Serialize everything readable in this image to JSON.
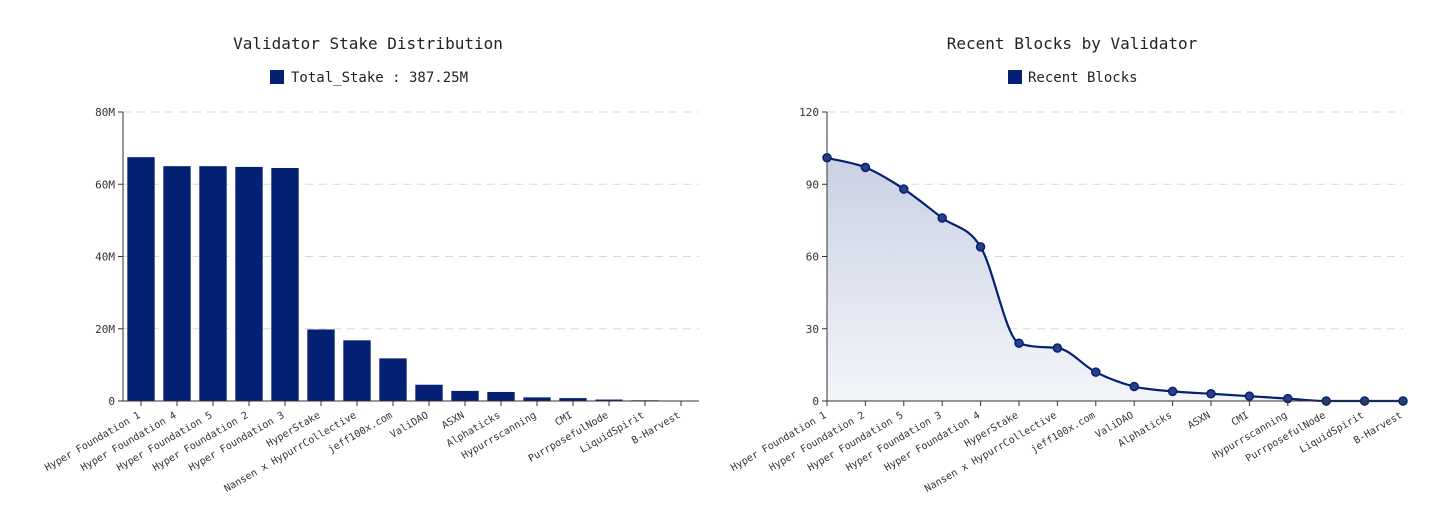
{
  "colors": {
    "series": "#032072",
    "area_top": "#c9d1e3",
    "area_bottom": "#f3f5fa"
  },
  "chart_data": [
    {
      "type": "bar",
      "title": "Validator Stake Distribution",
      "legend": "Total_Stake : 387.25M",
      "categories": [
        "Hyper Foundation 1",
        "Hyper Foundation 4",
        "Hyper Foundation 5",
        "Hyper Foundation 2",
        "Hyper Foundation 3",
        "HyperStake",
        "Nansen x HypurrCollective",
        "jeff100x.com",
        "ValiDAO",
        "ASXN",
        "Alphaticks",
        "Hypurrscanning",
        "CMI",
        "PurrposefulNode",
        "LiquidSpirit",
        "B-Harvest"
      ],
      "values": [
        67.5,
        65.0,
        65.0,
        64.8,
        64.5,
        19.8,
        16.8,
        11.8,
        4.5,
        2.8,
        2.5,
        1.0,
        0.8,
        0.4,
        0.2,
        0.1
      ],
      "yticks": [
        "0",
        "20M",
        "40M",
        "60M",
        "80M"
      ],
      "ylim": [
        0,
        80
      ],
      "xlabel": "",
      "ylabel": "",
      "grid": true
    },
    {
      "type": "area",
      "title": "Recent Blocks by Validator",
      "legend": "Recent Blocks",
      "categories": [
        "Hyper Foundation 1",
        "Hyper Foundation 2",
        "Hyper Foundation 5",
        "Hyper Foundation 3",
        "Hyper Foundation 4",
        "HyperStake",
        "Nansen x HypurrCollective",
        "jeff100x.com",
        "ValiDAO",
        "Alphaticks",
        "ASXN",
        "CMI",
        "Hypurrscanning",
        "PurrposefulNode",
        "LiquidSpirit",
        "B-Harvest"
      ],
      "values": [
        101,
        97,
        88,
        76,
        64,
        24,
        22,
        12,
        6,
        4,
        3,
        2,
        1,
        0,
        0,
        0
      ],
      "yticks": [
        "0",
        "30",
        "60",
        "90",
        "120"
      ],
      "ylim": [
        0,
        120
      ],
      "xlabel": "",
      "ylabel": "",
      "grid": true
    }
  ]
}
